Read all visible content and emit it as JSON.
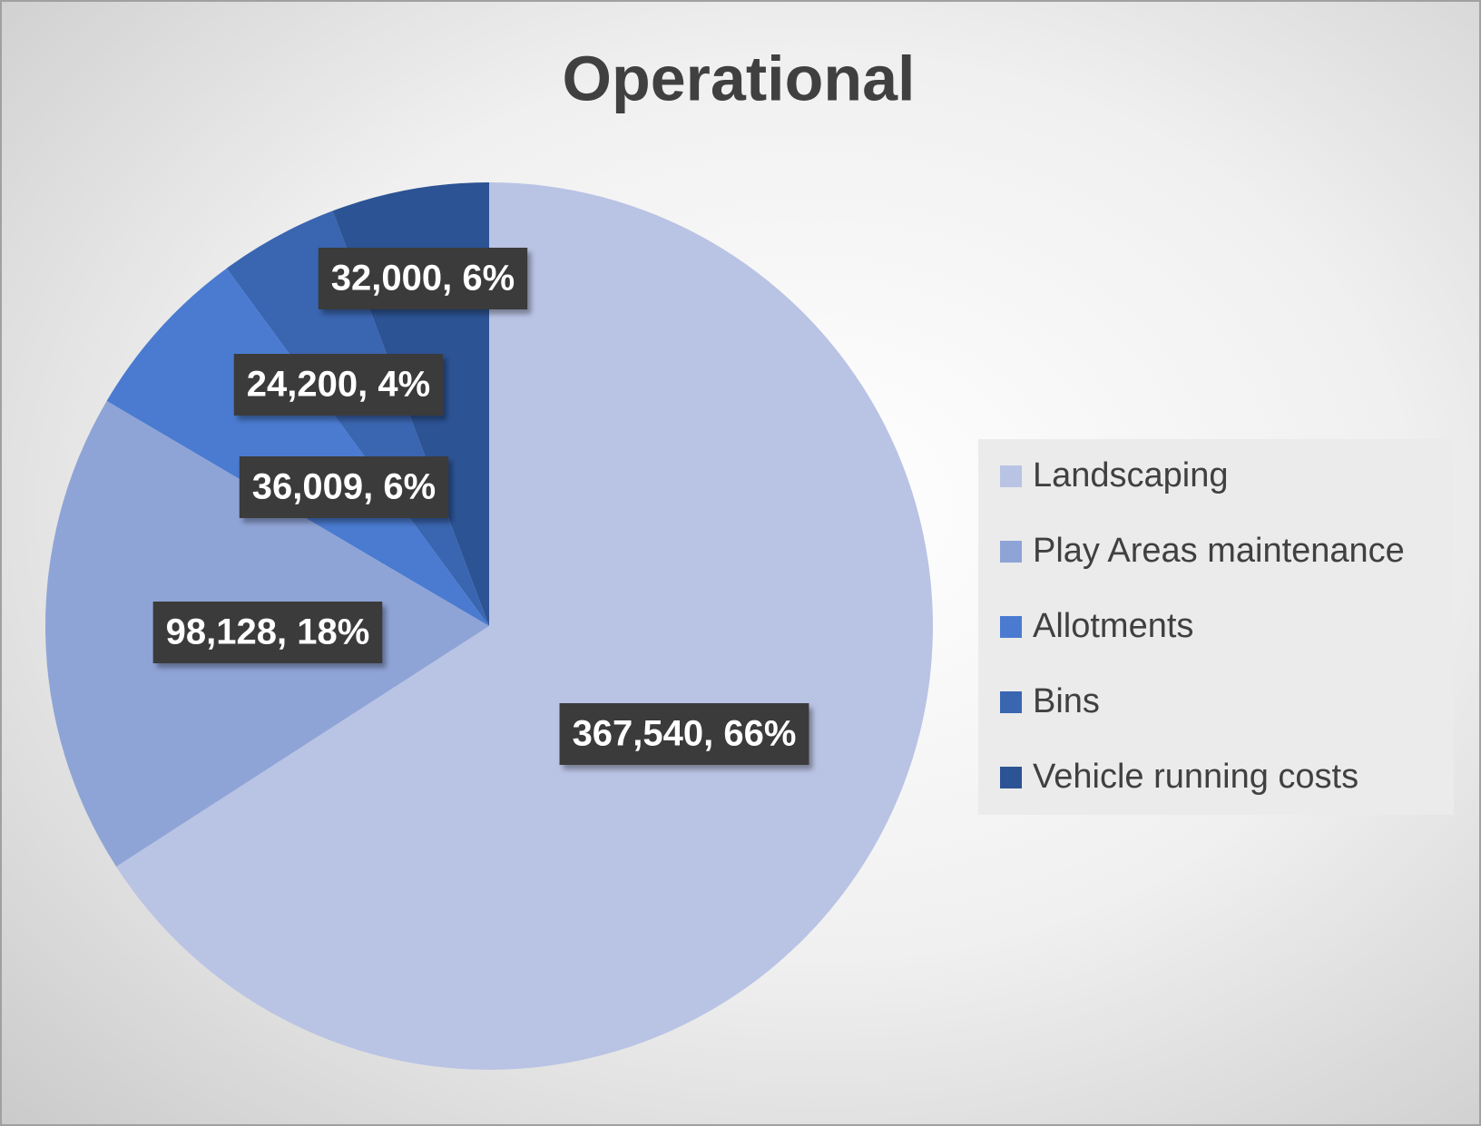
{
  "chart_data": {
    "type": "pie",
    "title": "Operational",
    "categories": [
      "Landscaping",
      "Play Areas maintenance",
      "Allotments",
      "Bins",
      "Vehicle running costs"
    ],
    "values": [
      367540,
      98128,
      36009,
      24200,
      32000
    ],
    "value_labels": [
      "367,540, 66%",
      "98,128, 18%",
      "36,009, 6%",
      "24,200, 4%",
      "32,000, 6%"
    ],
    "colors": [
      "#b9c3e4",
      "#8fa4d6",
      "#4a7bd0",
      "#3a65b0",
      "#2c5394"
    ],
    "legend": "right"
  }
}
